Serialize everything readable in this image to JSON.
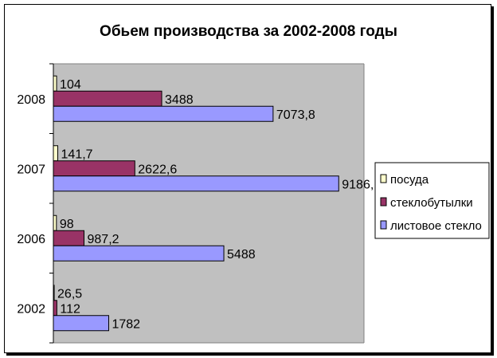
{
  "chart_data": {
    "type": "bar",
    "orientation": "horizontal",
    "title": "Обьем производства за 2002-2008 годы",
    "categories": [
      "2008",
      "2007",
      "2006",
      "2002"
    ],
    "series": [
      {
        "name": "посуда",
        "color": "#ffffcc",
        "values": [
          104,
          141.7,
          98,
          26.5
        ],
        "labels": [
          "104",
          "141,7",
          "98",
          "26,5"
        ]
      },
      {
        "name": "стеклобутылки",
        "color": "#993366",
        "values": [
          3488,
          2622.6,
          987.2,
          112
        ],
        "labels": [
          "3488",
          "2622,6",
          "987,2",
          "112"
        ]
      },
      {
        "name": "листовое стекло",
        "color": "#9999ff",
        "values": [
          7073.8,
          9186,
          5488,
          1782
        ],
        "labels": [
          "7073,8",
          "9186,",
          "5488",
          "1782"
        ]
      }
    ],
    "xlim": [
      0,
      10000
    ],
    "grid": false,
    "legend": "right",
    "plot_background": "#c0c0c0"
  }
}
